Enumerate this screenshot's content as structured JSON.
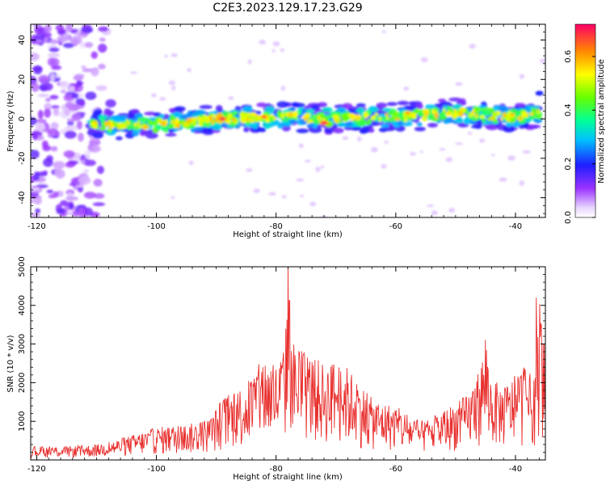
{
  "title": "C2E3.2023.129.17.23.G29",
  "chart_data": [
    {
      "type": "heatmap",
      "title": "C2E3.2023.129.17.23.G29",
      "xlabel": "Height of straight line (km)",
      "ylabel": "Frequency (Hz)",
      "xlim": [
        -121,
        -35
      ],
      "ylim": [
        -50,
        48
      ],
      "xticks": [
        "-120",
        "-100",
        "-80",
        "-60",
        "-40"
      ],
      "yticks": [
        "40",
        "20",
        "0",
        "-20",
        "-40"
      ],
      "colorbar": {
        "label": "Normalized spectral amplitude",
        "range": [
          0.0,
          0.72
        ],
        "ticks": [
          "0.0",
          "0.2",
          "0.4",
          "0.6"
        ]
      },
      "features": {
        "band_center_x": [
          -110,
          -100,
          -90,
          -80,
          -70,
          -60,
          -50,
          -40,
          -36
        ],
        "band_center_y": [
          -3,
          -3,
          0,
          1,
          0,
          1,
          3,
          1,
          2
        ],
        "peaks": [
          {
            "x": -89,
            "y": 0,
            "value": 0.7
          },
          {
            "x": -82,
            "y": 1,
            "value": 0.65
          },
          {
            "x": -72,
            "y": -2,
            "value": 0.7
          },
          {
            "x": -58,
            "y": 3,
            "value": 0.6
          },
          {
            "x": -95,
            "y": -3,
            "value": 0.55
          }
        ],
        "noise_region_x": [
          -121,
          -107
        ]
      }
    },
    {
      "type": "line",
      "xlabel": "Height of straight line (km)",
      "ylabel": "SNR (10 * v/v)",
      "xlim": [
        -121,
        -35
      ],
      "ylim": [
        0,
        5000
      ],
      "xticks": [
        "-120",
        "-100",
        "-80",
        "-60",
        "-40"
      ],
      "yticks": [
        "5000",
        "4000",
        "3000",
        "2000",
        "1000"
      ],
      "color": "#e8312f",
      "envelope": {
        "x": [
          -121,
          -115,
          -110,
          -106,
          -103,
          -100,
          -97,
          -94,
          -91,
          -89,
          -86,
          -84,
          -82,
          -80,
          -78.5,
          -78,
          -77,
          -75,
          -72,
          -70,
          -68,
          -66,
          -64,
          -62,
          -60,
          -58,
          -56,
          -54,
          -52,
          -50,
          -48,
          -46,
          -45,
          -44,
          -42,
          -40,
          -38,
          -37,
          -36,
          -35
        ],
        "y": [
          350,
          350,
          400,
          550,
          700,
          850,
          900,
          950,
          1100,
          1600,
          1900,
          2200,
          2700,
          2500,
          3000,
          5000,
          3000,
          2800,
          2500,
          2600,
          2400,
          2000,
          1600,
          1500,
          1400,
          1200,
          1000,
          1100,
          1300,
          1500,
          1700,
          2400,
          3100,
          2100,
          1900,
          2200,
          2500,
          1900,
          4200,
          2800
        ]
      },
      "notable_peaks": [
        {
          "x": -78,
          "y": 5000
        },
        {
          "x": -45,
          "y": 3100
        },
        {
          "x": -36.5,
          "y": 4200
        }
      ]
    }
  ]
}
